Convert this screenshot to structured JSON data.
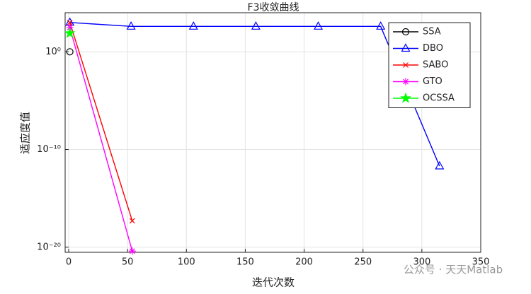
{
  "chart_data": {
    "type": "line",
    "title": "F3收敛曲线",
    "x_label": "迭代次数",
    "y_label": "适应度值",
    "xlim": [
      -3,
      350
    ],
    "xticks": [
      0,
      50,
      100,
      150,
      200,
      250,
      300,
      350
    ],
    "ylim": [
      3e-21,
      10000
    ],
    "y_log": true,
    "yticks": [
      {
        "value": 1e-20,
        "label": "10⁻²⁰"
      },
      {
        "value": 1e-10,
        "label": "10⁻¹⁰"
      },
      {
        "value": 1,
        "label": "10⁰"
      }
    ],
    "grid": true,
    "legend_position": "upper-right",
    "series": [
      {
        "name": "SSA",
        "color": "#000000",
        "marker": "circle",
        "x": [
          1
        ],
        "values": [
          1
        ]
      },
      {
        "name": "DBO",
        "color": "#0000ff",
        "marker": "triangle",
        "x": [
          1,
          53,
          106,
          159,
          212,
          265,
          315
        ],
        "values": [
          1000,
          400,
          400,
          400,
          400,
          400,
          2e-12
        ]
      },
      {
        "name": "SABO",
        "color": "#ff0000",
        "marker": "x",
        "x": [
          1,
          54
        ],
        "values": [
          1000,
          5e-18
        ]
      },
      {
        "name": "GTO",
        "color": "#ff00ff",
        "marker": "asterisk",
        "x": [
          1,
          54
        ],
        "values": [
          300,
          4e-21
        ]
      },
      {
        "name": "OCSSA",
        "color": "#00ff00",
        "marker": "star",
        "x": [
          1
        ],
        "values": [
          80
        ]
      }
    ],
    "annotation": "公众号 · 天天Matlab"
  }
}
